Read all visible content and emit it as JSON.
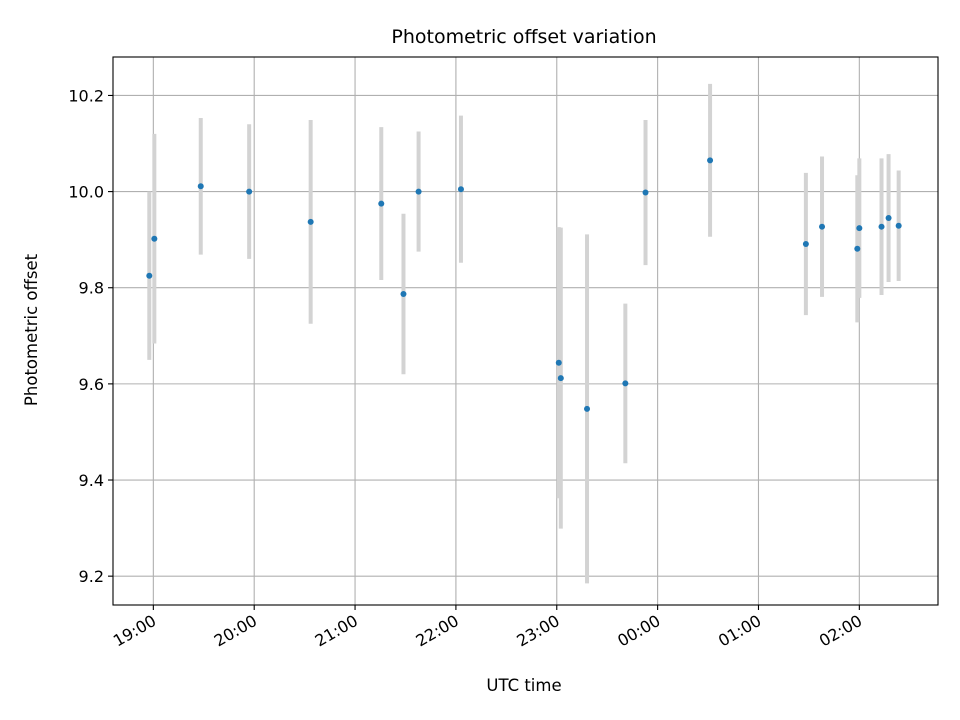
{
  "chart_data": {
    "type": "scatter",
    "title": "Photometric offset variation",
    "xlabel": "UTC time",
    "ylabel": "Photometric offset",
    "x_unit": "hours (UTC, continuing past midnight)",
    "xlim": [
      18.6,
      26.78
    ],
    "ylim": [
      9.14,
      10.28
    ],
    "grid": true,
    "x_ticks": [
      {
        "value": 19,
        "label": "19:00"
      },
      {
        "value": 20,
        "label": "20:00"
      },
      {
        "value": 21,
        "label": "21:00"
      },
      {
        "value": 22,
        "label": "22:00"
      },
      {
        "value": 23,
        "label": "23:00"
      },
      {
        "value": 24,
        "label": "00:00"
      },
      {
        "value": 25,
        "label": "01:00"
      },
      {
        "value": 26,
        "label": "02:00"
      }
    ],
    "y_ticks": [
      {
        "value": 9.2,
        "label": "9.2"
      },
      {
        "value": 9.4,
        "label": "9.4"
      },
      {
        "value": 9.6,
        "label": "9.6"
      },
      {
        "value": 9.8,
        "label": "9.8"
      },
      {
        "value": 10.0,
        "label": "10.0"
      },
      {
        "value": 10.2,
        "label": "10.2"
      }
    ],
    "colors": {
      "marker": "#1f77b4",
      "errorbar": "#d3d3d3",
      "grid": "#b0b0b0"
    },
    "points": [
      {
        "x": 18.96,
        "y": 9.825,
        "err": 0.175
      },
      {
        "x": 19.01,
        "y": 9.902,
        "err": 0.218
      },
      {
        "x": 19.47,
        "y": 10.011,
        "err": 0.142
      },
      {
        "x": 19.95,
        "y": 10.0,
        "err": 0.14
      },
      {
        "x": 20.56,
        "y": 9.937,
        "err": 0.212
      },
      {
        "x": 21.26,
        "y": 9.975,
        "err": 0.159
      },
      {
        "x": 21.48,
        "y": 9.787,
        "err": 0.167
      },
      {
        "x": 21.63,
        "y": 10.0,
        "err": 0.125
      },
      {
        "x": 22.05,
        "y": 10.005,
        "err": 0.153
      },
      {
        "x": 23.02,
        "y": 9.644,
        "err": 0.282
      },
      {
        "x": 23.04,
        "y": 9.612,
        "err": 0.313
      },
      {
        "x": 23.3,
        "y": 9.548,
        "err": 0.363
      },
      {
        "x": 23.68,
        "y": 9.601,
        "err": 0.166
      },
      {
        "x": 23.88,
        "y": 9.998,
        "err": 0.151
      },
      {
        "x": 24.52,
        "y": 10.065,
        "err": 0.159
      },
      {
        "x": 25.47,
        "y": 9.891,
        "err": 0.148
      },
      {
        "x": 25.63,
        "y": 9.927,
        "err": 0.146
      },
      {
        "x": 25.98,
        "y": 9.881,
        "err": 0.153
      },
      {
        "x": 26.0,
        "y": 9.924,
        "err": 0.145
      },
      {
        "x": 26.22,
        "y": 9.927,
        "err": 0.142
      },
      {
        "x": 26.29,
        "y": 9.945,
        "err": 0.133
      },
      {
        "x": 26.39,
        "y": 9.929,
        "err": 0.115
      }
    ]
  }
}
